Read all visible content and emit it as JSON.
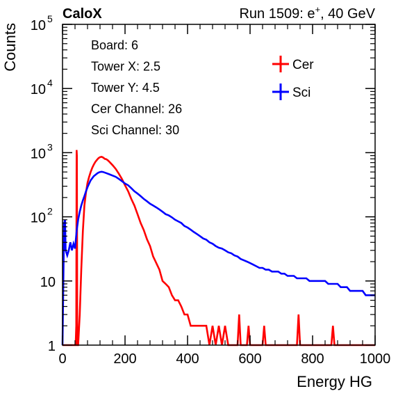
{
  "chart_data": {
    "type": "line",
    "title_left": "CaloX",
    "title_right": "Run 1509: e",
    "title_right_sup": "+",
    "title_right_tail": ", 40 GeV",
    "xlabel": "Energy HG",
    "ylabel": "Counts",
    "xlim": [
      0,
      1000
    ],
    "ylim": [
      1,
      100000
    ],
    "yscale": "log",
    "x_ticks": [
      "0",
      "200",
      "400",
      "600",
      "800",
      "1000"
    ],
    "x_tick_values": [
      0,
      200,
      400,
      600,
      800,
      1000
    ],
    "y_ticks": [
      {
        "value": 1,
        "base": "1",
        "exp": ""
      },
      {
        "value": 10,
        "base": "10",
        "exp": ""
      },
      {
        "value": 100,
        "base": "10",
        "exp": "2"
      },
      {
        "value": 1000,
        "base": "10",
        "exp": "3"
      },
      {
        "value": 10000,
        "base": "10",
        "exp": "4"
      },
      {
        "value": 100000,
        "base": "10",
        "exp": "5"
      }
    ],
    "info": [
      "Board: 6",
      "Tower X: 2.5",
      "Tower Y: 4.5",
      "Cer Channel: 26",
      "Sci Channel: 30"
    ],
    "legend_position": "top-right",
    "grid": false,
    "series": [
      {
        "name": "Cer",
        "color": "#ff0000",
        "points": [
          [
            0,
            1
          ],
          [
            35,
            1
          ],
          [
            38,
            1
          ],
          [
            40,
            1
          ],
          [
            42,
            1
          ],
          [
            44,
            2
          ],
          [
            45,
            1100
          ],
          [
            46,
            900
          ],
          [
            47,
            2
          ],
          [
            48,
            1
          ],
          [
            50,
            1
          ],
          [
            55,
            3
          ],
          [
            60,
            15
          ],
          [
            65,
            60
          ],
          [
            70,
            150
          ],
          [
            75,
            240
          ],
          [
            80,
            340
          ],
          [
            85,
            420
          ],
          [
            90,
            500
          ],
          [
            95,
            580
          ],
          [
            100,
            650
          ],
          [
            105,
            720
          ],
          [
            110,
            770
          ],
          [
            115,
            820
          ],
          [
            120,
            850
          ],
          [
            125,
            860
          ],
          [
            130,
            840
          ],
          [
            135,
            800
          ],
          [
            140,
            790
          ],
          [
            145,
            760
          ],
          [
            150,
            720
          ],
          [
            160,
            640
          ],
          [
            170,
            560
          ],
          [
            180,
            470
          ],
          [
            190,
            390
          ],
          [
            200,
            310
          ],
          [
            210,
            250
          ],
          [
            220,
            190
          ],
          [
            230,
            150
          ],
          [
            240,
            110
          ],
          [
            250,
            80
          ],
          [
            260,
            62
          ],
          [
            270,
            45
          ],
          [
            280,
            35
          ],
          [
            290,
            24
          ],
          [
            300,
            19
          ],
          [
            310,
            15
          ],
          [
            320,
            10
          ],
          [
            330,
            9
          ],
          [
            340,
            8
          ],
          [
            350,
            6
          ],
          [
            360,
            5
          ],
          [
            370,
            5
          ],
          [
            380,
            4
          ],
          [
            390,
            3
          ],
          [
            400,
            3
          ],
          [
            410,
            2
          ],
          [
            420,
            2
          ],
          [
            430,
            2
          ],
          [
            440,
            2
          ],
          [
            450,
            2
          ],
          [
            460,
            2
          ],
          [
            470,
            1
          ],
          [
            480,
            2
          ],
          [
            490,
            1
          ],
          [
            500,
            2
          ],
          [
            510,
            1
          ],
          [
            520,
            2
          ],
          [
            530,
            1
          ],
          [
            540,
            1
          ],
          [
            550,
            1
          ],
          [
            560,
            1
          ],
          [
            565,
            3
          ],
          [
            570,
            1
          ],
          [
            580,
            1
          ],
          [
            590,
            1
          ],
          [
            595,
            2
          ],
          [
            600,
            1
          ],
          [
            610,
            1
          ],
          [
            620,
            1
          ],
          [
            630,
            1
          ],
          [
            640,
            1
          ],
          [
            645,
            2
          ],
          [
            650,
            1
          ],
          [
            700,
            1
          ],
          [
            750,
            1
          ],
          [
            755,
            3
          ],
          [
            760,
            1
          ],
          [
            800,
            1
          ],
          [
            860,
            1
          ],
          [
            865,
            2
          ],
          [
            870,
            1
          ],
          [
            1000,
            1
          ]
        ]
      },
      {
        "name": "Sci",
        "color": "#0000ff",
        "points": [
          [
            0,
            1
          ],
          [
            5,
            80
          ],
          [
            8,
            90
          ],
          [
            10,
            30
          ],
          [
            15,
            25
          ],
          [
            20,
            30
          ],
          [
            25,
            40
          ],
          [
            30,
            30
          ],
          [
            35,
            38
          ],
          [
            40,
            32
          ],
          [
            45,
            60
          ],
          [
            50,
            90
          ],
          [
            55,
            120
          ],
          [
            60,
            150
          ],
          [
            65,
            180
          ],
          [
            70,
            210
          ],
          [
            75,
            250
          ],
          [
            80,
            290
          ],
          [
            85,
            330
          ],
          [
            90,
            370
          ],
          [
            95,
            400
          ],
          [
            100,
            430
          ],
          [
            105,
            450
          ],
          [
            110,
            470
          ],
          [
            115,
            490
          ],
          [
            120,
            500
          ],
          [
            125,
            505
          ],
          [
            130,
            500
          ],
          [
            140,
            480
          ],
          [
            150,
            460
          ],
          [
            160,
            440
          ],
          [
            170,
            420
          ],
          [
            180,
            390
          ],
          [
            190,
            360
          ],
          [
            200,
            330
          ],
          [
            210,
            310
          ],
          [
            220,
            280
          ],
          [
            230,
            250
          ],
          [
            240,
            230
          ],
          [
            250,
            210
          ],
          [
            260,
            190
          ],
          [
            270,
            175
          ],
          [
            280,
            160
          ],
          [
            290,
            150
          ],
          [
            300,
            140
          ],
          [
            310,
            130
          ],
          [
            320,
            120
          ],
          [
            330,
            110
          ],
          [
            340,
            105
          ],
          [
            350,
            98
          ],
          [
            360,
            90
          ],
          [
            370,
            85
          ],
          [
            380,
            80
          ],
          [
            390,
            72
          ],
          [
            400,
            68
          ],
          [
            410,
            63
          ],
          [
            420,
            58
          ],
          [
            430,
            54
          ],
          [
            440,
            50
          ],
          [
            450,
            46
          ],
          [
            460,
            44
          ],
          [
            470,
            40
          ],
          [
            480,
            38
          ],
          [
            490,
            35
          ],
          [
            500,
            33
          ],
          [
            510,
            32
          ],
          [
            520,
            30
          ],
          [
            530,
            28
          ],
          [
            540,
            27
          ],
          [
            550,
            25
          ],
          [
            560,
            24
          ],
          [
            570,
            22
          ],
          [
            580,
            21
          ],
          [
            590,
            20
          ],
          [
            600,
            19
          ],
          [
            610,
            18
          ],
          [
            620,
            17
          ],
          [
            630,
            16
          ],
          [
            640,
            16
          ],
          [
            650,
            15
          ],
          [
            660,
            15
          ],
          [
            670,
            14
          ],
          [
            680,
            14
          ],
          [
            690,
            14
          ],
          [
            700,
            13
          ],
          [
            710,
            13
          ],
          [
            720,
            12
          ],
          [
            730,
            12
          ],
          [
            740,
            12
          ],
          [
            750,
            11
          ],
          [
            760,
            11
          ],
          [
            770,
            11
          ],
          [
            780,
            11
          ],
          [
            790,
            10
          ],
          [
            800,
            10
          ],
          [
            810,
            10
          ],
          [
            820,
            10
          ],
          [
            830,
            10
          ],
          [
            840,
            10
          ],
          [
            850,
            9
          ],
          [
            860,
            9
          ],
          [
            870,
            9
          ],
          [
            880,
            9
          ],
          [
            890,
            8
          ],
          [
            900,
            8
          ],
          [
            910,
            8
          ],
          [
            920,
            7
          ],
          [
            930,
            7
          ],
          [
            940,
            7
          ],
          [
            950,
            7
          ],
          [
            960,
            7
          ],
          [
            970,
            6
          ],
          [
            980,
            6
          ],
          [
            990,
            6
          ],
          [
            1000,
            6
          ]
        ]
      }
    ]
  }
}
